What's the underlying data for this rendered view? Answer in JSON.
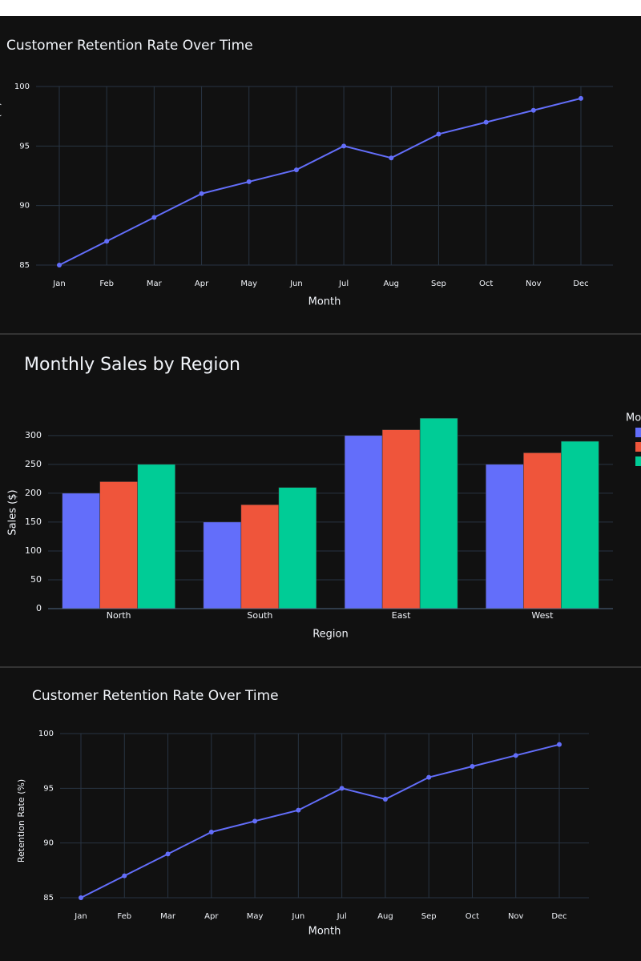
{
  "chart_data": [
    {
      "type": "line",
      "title": "Customer Retention Rate Over Time",
      "x_label": "Month",
      "y_label": "Retention Rate (%)",
      "categories": [
        "Jan",
        "Feb",
        "Mar",
        "Apr",
        "May",
        "Jun",
        "Jul",
        "Aug",
        "Sep",
        "Oct",
        "Nov",
        "Dec"
      ],
      "values": [
        85,
        87,
        89,
        91,
        92,
        93,
        95,
        94,
        96,
        97,
        98,
        99
      ],
      "color": "#636efa",
      "ylim": [
        85,
        100
      ],
      "yticks": [
        85,
        90,
        95,
        100
      ],
      "grid": true
    },
    {
      "type": "bar",
      "title": "Monthly Sales by Region",
      "x_label": "Region",
      "y_label": "Sales ($)",
      "legend_title": "Month",
      "categories": [
        "North",
        "South",
        "East",
        "West"
      ],
      "series": [
        {
          "color": "#636efa",
          "values": [
            200,
            150,
            300,
            250
          ]
        },
        {
          "color": "#ef553b",
          "values": [
            220,
            180,
            310,
            270
          ]
        },
        {
          "color": "#00cc96",
          "values": [
            250,
            210,
            330,
            290
          ]
        }
      ],
      "ylim": [
        0,
        340
      ],
      "yticks": [
        0,
        50,
        100,
        150,
        200,
        250,
        300
      ],
      "grid": true,
      "legend": "right"
    },
    {
      "type": "line",
      "title": "Customer Retention Rate Over Time",
      "x_label": "Month",
      "y_label": "Retention Rate (%)",
      "categories": [
        "Jan",
        "Feb",
        "Mar",
        "Apr",
        "May",
        "Jun",
        "Jul",
        "Aug",
        "Sep",
        "Oct",
        "Nov",
        "Dec"
      ],
      "values": [
        85,
        87,
        89,
        91,
        92,
        93,
        95,
        94,
        96,
        97,
        98,
        99
      ],
      "color": "#636efa",
      "ylim": [
        85,
        100
      ],
      "yticks": [
        85,
        90,
        95,
        100
      ],
      "grid": true
    }
  ]
}
